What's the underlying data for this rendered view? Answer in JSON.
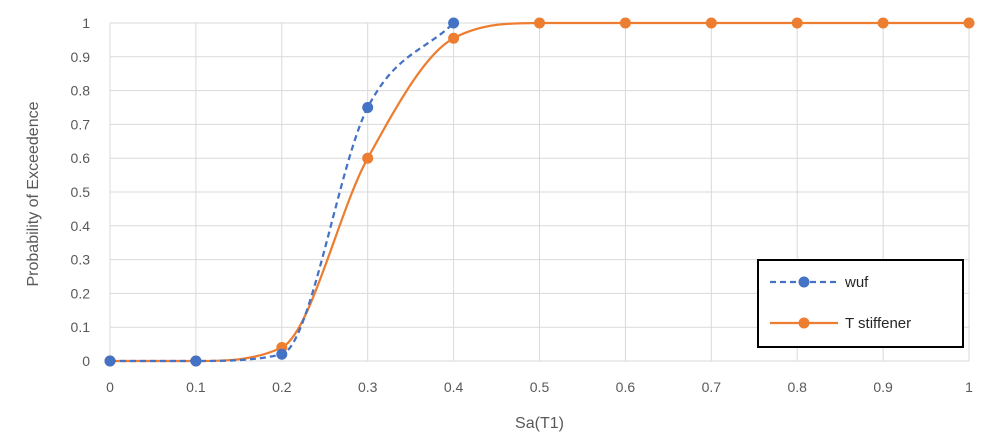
{
  "chart_data": {
    "type": "line",
    "xlabel": "Sa(T1)",
    "ylabel": "Probability of Exceedence",
    "xlim": [
      0,
      1
    ],
    "ylim": [
      0,
      1
    ],
    "x_ticks": [
      0,
      0.1,
      0.2,
      0.3,
      0.4,
      0.5,
      0.6,
      0.7,
      0.8,
      0.9,
      1
    ],
    "x_tick_labels": [
      "0",
      "0.1",
      "0.2",
      "0.3",
      "0.4",
      "0.5",
      "0.6",
      "0.7",
      "0.8",
      "0.9",
      "1"
    ],
    "y_ticks": [
      0,
      0.1,
      0.2,
      0.3,
      0.4,
      0.5,
      0.6,
      0.7,
      0.8,
      0.9,
      1
    ],
    "y_tick_labels": [
      "0",
      "0.1",
      "0.2",
      "0.3",
      "0.4",
      "0.5",
      "0.6",
      "0.7",
      "0.8",
      "0.9",
      "1"
    ],
    "grid": true,
    "legend": "bottom-right",
    "smooth": true,
    "series": [
      {
        "name": "wuf",
        "color": "#4472C4",
        "dash": "dashed",
        "marker": "circle",
        "x": [
          0,
          0.1,
          0.2,
          0.3,
          0.4
        ],
        "y": [
          0,
          0,
          0.02,
          0.75,
          1.0
        ]
      },
      {
        "name": "T stiffener",
        "color": "#ED7D31",
        "dash": "solid",
        "marker": "circle",
        "x": [
          0,
          0.1,
          0.2,
          0.3,
          0.4,
          0.5,
          0.6,
          0.7,
          0.8,
          0.9,
          1
        ],
        "y": [
          0,
          0,
          0.04,
          0.6,
          0.955,
          1.0,
          1.0,
          1.0,
          1.0,
          1.0,
          1.0
        ]
      }
    ]
  }
}
